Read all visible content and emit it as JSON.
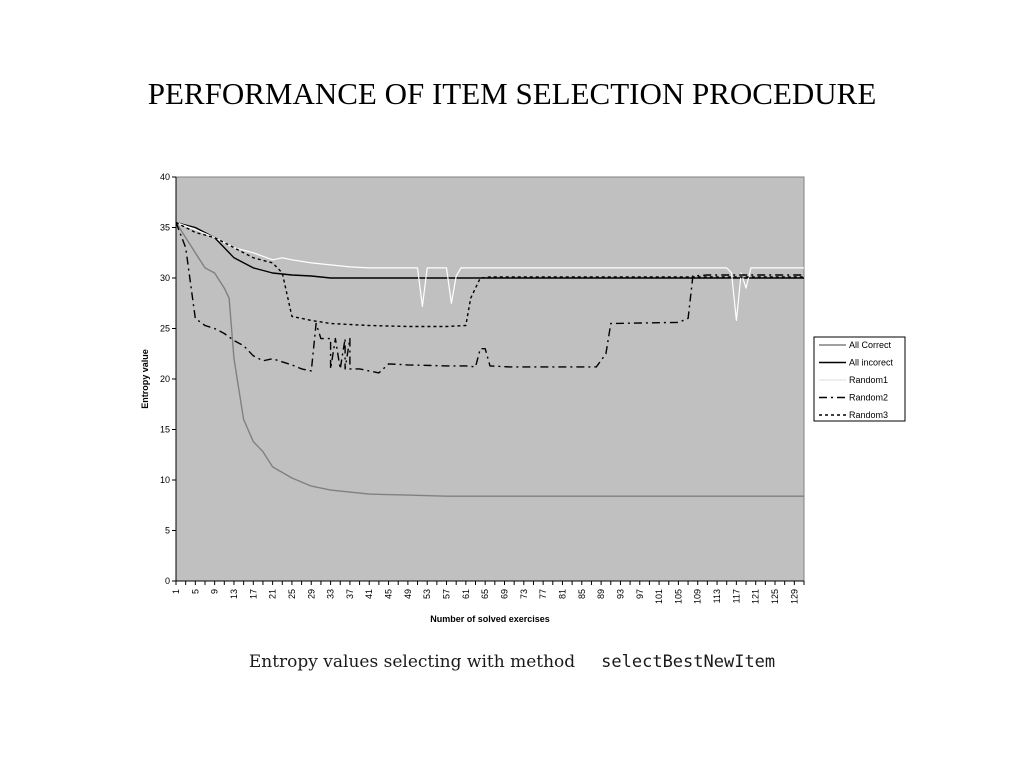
{
  "slide": {
    "title": "PERFORMANCE OF ITEM SELECTION PROCEDURE"
  },
  "caption": {
    "text": "Entropy values selecting with method",
    "method": "selectBestNewItem"
  },
  "chart_data": {
    "type": "line",
    "title": "",
    "xlabel": "Number of solved exercises",
    "ylabel": "Entropy value",
    "xlim": [
      1,
      131
    ],
    "ylim": [
      0,
      40
    ],
    "yticks": [
      0,
      5,
      10,
      15,
      20,
      25,
      30,
      35,
      40
    ],
    "xtick_labels": [
      "1",
      "5",
      "9",
      "13",
      "17",
      "21",
      "25",
      "29",
      "33",
      "37",
      "41",
      "45",
      "49",
      "53",
      "57",
      "61",
      "65",
      "69",
      "73",
      "77",
      "81",
      "85",
      "89",
      "93",
      "97",
      "101",
      "105",
      "109",
      "113",
      "117",
      "121",
      "125",
      "129"
    ],
    "plot_background": "#c0c0c0",
    "grid": false,
    "legend": "right",
    "series": [
      {
        "name": "All Correct",
        "color": "#808080",
        "dash": "solid",
        "points": [
          [
            1,
            35.5
          ],
          [
            3,
            34
          ],
          [
            5,
            32.5
          ],
          [
            7,
            31
          ],
          [
            9,
            30.5
          ],
          [
            11,
            29
          ],
          [
            12,
            28
          ],
          [
            13,
            22
          ],
          [
            15,
            16
          ],
          [
            17,
            13.8
          ],
          [
            19,
            12.8
          ],
          [
            21,
            11.3
          ],
          [
            25,
            10.2
          ],
          [
            29,
            9.4
          ],
          [
            33,
            9
          ],
          [
            37,
            8.8
          ],
          [
            41,
            8.6
          ],
          [
            49,
            8.5
          ],
          [
            57,
            8.4
          ],
          [
            129,
            8.4
          ],
          [
            131,
            8.4
          ]
        ]
      },
      {
        "name": "All incorect",
        "color": "#000000",
        "dash": "solid",
        "points": [
          [
            1,
            35.5
          ],
          [
            5,
            35
          ],
          [
            9,
            34
          ],
          [
            13,
            32
          ],
          [
            17,
            31
          ],
          [
            21,
            30.5
          ],
          [
            25,
            30.3
          ],
          [
            29,
            30.2
          ],
          [
            33,
            30
          ],
          [
            65,
            30
          ],
          [
            131,
            30
          ]
        ]
      },
      {
        "name": "Random1",
        "color": "#ffffff",
        "dash": "solid",
        "points": [
          [
            1,
            35.5
          ],
          [
            5,
            34.8
          ],
          [
            9,
            34
          ],
          [
            13,
            33
          ],
          [
            17,
            32.5
          ],
          [
            21,
            31.8
          ],
          [
            23,
            32
          ],
          [
            25,
            31.8
          ],
          [
            29,
            31.5
          ],
          [
            33,
            31.3
          ],
          [
            37,
            31.1
          ],
          [
            41,
            31
          ],
          [
            45,
            31
          ],
          [
            49,
            31
          ],
          [
            51,
            31
          ],
          [
            52,
            27.2
          ],
          [
            53,
            31
          ],
          [
            57,
            31
          ],
          [
            58,
            27.5
          ],
          [
            59,
            30.2
          ],
          [
            60,
            31
          ],
          [
            64,
            31
          ],
          [
            65,
            31
          ],
          [
            113,
            31
          ],
          [
            115,
            31
          ],
          [
            116,
            30.5
          ],
          [
            117,
            25.8
          ],
          [
            118,
            30.5
          ],
          [
            119,
            29
          ],
          [
            120,
            31
          ],
          [
            131,
            31
          ]
        ]
      },
      {
        "name": "Random2",
        "color": "#000000",
        "dash": "8,4,2,4",
        "points": [
          [
            1,
            35.5
          ],
          [
            3,
            33
          ],
          [
            5,
            26
          ],
          [
            7,
            25.3
          ],
          [
            9,
            25
          ],
          [
            11,
            24.5
          ],
          [
            13,
            23.8
          ],
          [
            15,
            23.3
          ],
          [
            17,
            22.3
          ],
          [
            19,
            21.8
          ],
          [
            21,
            22
          ],
          [
            25,
            21.4
          ],
          [
            27,
            21
          ],
          [
            29,
            20.8
          ],
          [
            30,
            25.5
          ],
          [
            31,
            24
          ],
          [
            33,
            24
          ],
          [
            33,
            21
          ],
          [
            34,
            24
          ],
          [
            35,
            21
          ],
          [
            36,
            24
          ],
          [
            36,
            21
          ],
          [
            37,
            24
          ],
          [
            37,
            21
          ],
          [
            39,
            21
          ],
          [
            41,
            20.8
          ],
          [
            43,
            20.6
          ],
          [
            45,
            21.5
          ],
          [
            49,
            21.4
          ],
          [
            57,
            21.3
          ],
          [
            61,
            21.3
          ],
          [
            63,
            21.2
          ],
          [
            64,
            23
          ],
          [
            65,
            23
          ],
          [
            66,
            21.3
          ],
          [
            70,
            21.2
          ],
          [
            88,
            21.2
          ],
          [
            90,
            22.5
          ],
          [
            91,
            25.5
          ],
          [
            105,
            25.6
          ],
          [
            107,
            26
          ],
          [
            108,
            30.2
          ],
          [
            111,
            30.3
          ],
          [
            131,
            30.3
          ]
        ]
      },
      {
        "name": "Random3",
        "color": "#000000",
        "dash": "3,3",
        "points": [
          [
            1,
            35.5
          ],
          [
            5,
            34.5
          ],
          [
            9,
            34
          ],
          [
            13,
            33
          ],
          [
            17,
            32
          ],
          [
            21,
            31.5
          ],
          [
            23,
            30.5
          ],
          [
            25,
            26.2
          ],
          [
            29,
            25.8
          ],
          [
            33,
            25.5
          ],
          [
            41,
            25.3
          ],
          [
            49,
            25.2
          ],
          [
            57,
            25.2
          ],
          [
            61,
            25.3
          ],
          [
            62,
            28
          ],
          [
            63,
            29
          ],
          [
            64,
            30
          ],
          [
            66,
            30.1
          ],
          [
            131,
            30.1
          ]
        ]
      }
    ]
  }
}
